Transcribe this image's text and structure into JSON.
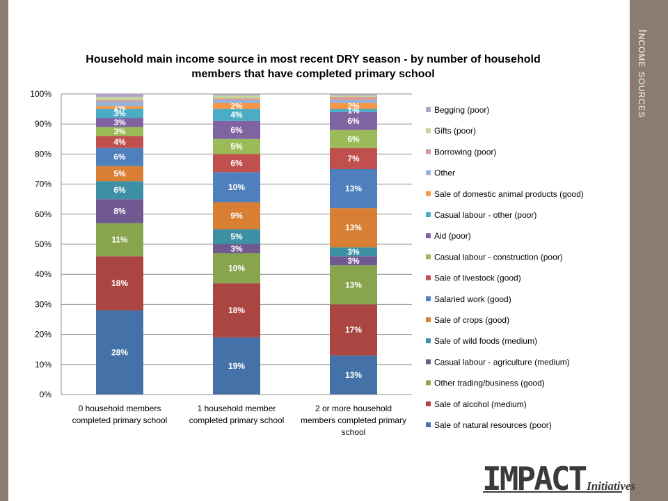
{
  "slide": {
    "section_title": "Income sources"
  },
  "logo": {
    "main": "IMPACT",
    "sub": "Initiatives"
  },
  "chart_data": {
    "type": "bar",
    "stacked": true,
    "title": "Household main income source in most recent DRY season - by number of household members that have completed primary school",
    "title_lines": [
      "Household main income source in most recent DRY season - by number of household",
      "members that have completed primary school"
    ],
    "ylim": [
      0,
      100
    ],
    "yticks": [
      "0%",
      "10%",
      "20%",
      "30%",
      "40%",
      "50%",
      "60%",
      "70%",
      "80%",
      "90%",
      "100%"
    ],
    "grid": true,
    "legend_position": "right",
    "categories": [
      [
        "0 household members",
        "completed primary school"
      ],
      [
        "1 household member",
        "completed primary school"
      ],
      [
        "2 or more household",
        "members completed primary",
        "school"
      ]
    ],
    "series": [
      {
        "name": "Sale of natural resources (poor)",
        "color": "#4472a8",
        "values": [
          28,
          19,
          13
        ],
        "labels": [
          "28%",
          "19%",
          "13%"
        ]
      },
      {
        "name": "Sale of alcohol (medium)",
        "color": "#aa4542",
        "values": [
          18,
          18,
          17
        ],
        "labels": [
          "18%",
          "18%",
          "17%"
        ]
      },
      {
        "name": "Other trading/business (good)",
        "color": "#88a44c",
        "values": [
          11,
          10,
          13
        ],
        "labels": [
          "11%",
          "10%",
          "13%"
        ]
      },
      {
        "name": "Casual labour - agriculture (medium)",
        "color": "#705990",
        "values": [
          8,
          3,
          3
        ],
        "labels": [
          "8%",
          "3%",
          "3%"
        ]
      },
      {
        "name": "Sale of wild foods (medium)",
        "color": "#3d8fa4",
        "values": [
          6,
          5,
          3
        ],
        "labels": [
          "6%",
          "5%",
          "3%"
        ]
      },
      {
        "name": "Sale of crops (good)",
        "color": "#d87f34",
        "values": [
          5,
          9,
          13
        ],
        "labels": [
          "5%",
          "9%",
          "13%"
        ]
      },
      {
        "name": "Salaried work (good)",
        "color": "#4f80bd",
        "values": [
          6,
          10,
          13
        ],
        "labels": [
          "6%",
          "10%",
          "13%"
        ]
      },
      {
        "name": "Sale of livestock (good)",
        "color": "#c0504d",
        "values": [
          4,
          6,
          7
        ],
        "labels": [
          "4%",
          "6%",
          "7%"
        ]
      },
      {
        "name": "Casual labour - construction (poor)",
        "color": "#9bbb59",
        "values": [
          3,
          5,
          6
        ],
        "labels": [
          "3%",
          "5%",
          "6%"
        ]
      },
      {
        "name": "Aid (poor)",
        "color": "#8064a2",
        "values": [
          3,
          6,
          6
        ],
        "labels": [
          "3%",
          "6%",
          "6%"
        ]
      },
      {
        "name": "Casual labour - other (poor)",
        "color": "#4bacc6",
        "values": [
          3,
          4,
          1
        ],
        "labels": [
          "3%",
          "4%",
          "1%"
        ]
      },
      {
        "name": "Sale of domestic animal products (good)",
        "color": "#f79646",
        "values": [
          1,
          2,
          2
        ],
        "labels": [
          "1%",
          "2%",
          "2%"
        ]
      },
      {
        "name": "Other",
        "color": "#95b3d7",
        "values": [
          1.5,
          1,
          1
        ],
        "labels": [
          "",
          "",
          ""
        ]
      },
      {
        "name": "Borrowing (poor)",
        "color": "#d99694",
        "values": [
          0.5,
          0.5,
          1
        ],
        "labels": [
          "",
          "",
          ""
        ]
      },
      {
        "name": "Gifts (poor)",
        "color": "#c3d69b",
        "values": [
          1,
          1,
          0.5
        ],
        "labels": [
          "",
          "",
          ""
        ]
      },
      {
        "name": "Begging (poor)",
        "color": "#b3a2c7",
        "values": [
          1,
          0.5,
          0.5
        ],
        "labels": [
          "",
          "",
          ""
        ]
      }
    ]
  }
}
